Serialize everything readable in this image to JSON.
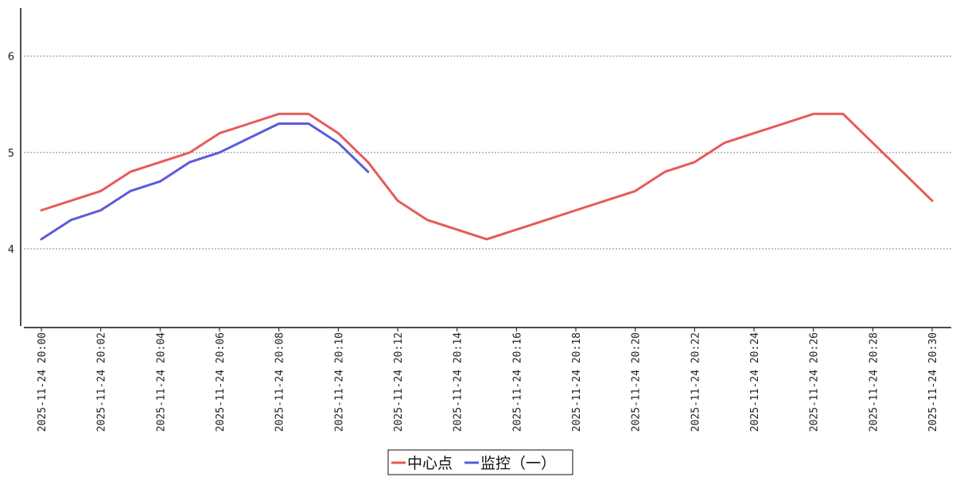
{
  "chart_data": {
    "type": "line",
    "title": "",
    "xlabel": "",
    "ylabel": "",
    "x": [
      "2025-11-24 20:00",
      "2025-11-24 20:01",
      "2025-11-24 20:02",
      "2025-11-24 20:03",
      "2025-11-24 20:04",
      "2025-11-24 20:05",
      "2025-11-24 20:06",
      "2025-11-24 20:07",
      "2025-11-24 20:08",
      "2025-11-24 20:09",
      "2025-11-24 20:10",
      "2025-11-24 20:11",
      "2025-11-24 20:12",
      "2025-11-24 20:13",
      "2025-11-24 20:14",
      "2025-11-24 20:15",
      "2025-11-24 20:16",
      "2025-11-24 20:17",
      "2025-11-24 20:18",
      "2025-11-24 20:19",
      "2025-11-24 20:20",
      "2025-11-24 20:21",
      "2025-11-24 20:22",
      "2025-11-24 20:23",
      "2025-11-24 20:24",
      "2025-11-24 20:25",
      "2025-11-24 20:26",
      "2025-11-24 20:27",
      "2025-11-24 20:28",
      "2025-11-24 20:29",
      "2025-11-24 20:30"
    ],
    "x_tick_labels": [
      "2025-11-24 20:00",
      "2025-11-24 20:02",
      "2025-11-24 20:04",
      "2025-11-24 20:06",
      "2025-11-24 20:08",
      "2025-11-24 20:10",
      "2025-11-24 20:12",
      "2025-11-24 20:14",
      "2025-11-24 20:16",
      "2025-11-24 20:18",
      "2025-11-24 20:20",
      "2025-11-24 20:22",
      "2025-11-24 20:24",
      "2025-11-24 20:26",
      "2025-11-24 20:28",
      "2025-11-24 20:30"
    ],
    "y_ticks": [
      "4",
      "5",
      "6"
    ],
    "ylim": [
      3.2,
      6.5
    ],
    "grid": true,
    "legend_position": "bottom-center",
    "series": [
      {
        "name": "中心点",
        "color": "#e85a5a",
        "values": [
          4.4,
          4.5,
          4.6,
          4.8,
          4.9,
          5.0,
          5.2,
          5.3,
          5.4,
          5.4,
          5.2,
          4.9,
          4.5,
          4.3,
          4.2,
          4.1,
          4.2,
          4.3,
          4.4,
          4.5,
          4.6,
          4.8,
          4.9,
          5.1,
          5.2,
          5.3,
          5.4,
          5.4,
          5.1,
          4.8,
          4.5
        ]
      },
      {
        "name": "监控（一）",
        "color": "#5b5bdc",
        "values": [
          4.1,
          4.3,
          4.4,
          4.6,
          4.7,
          4.9,
          5.0,
          5.15,
          5.3,
          5.3,
          5.1,
          4.8,
          null,
          null,
          null,
          null,
          null,
          null,
          null,
          null,
          null,
          null,
          null,
          null,
          null,
          null,
          null,
          null,
          null,
          null,
          null
        ]
      }
    ]
  }
}
